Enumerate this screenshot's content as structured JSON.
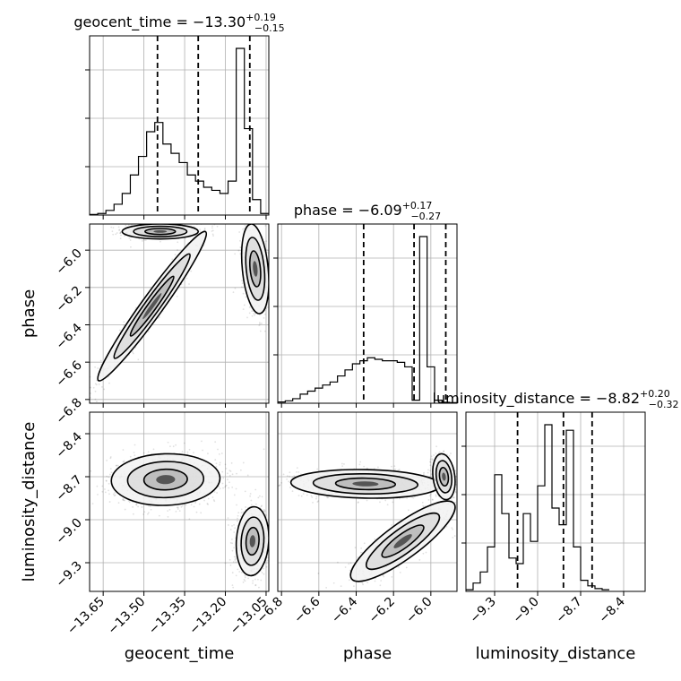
{
  "chart_data": {
    "type": "corner",
    "params": [
      "geocent_time",
      "phase",
      "luminosity_distance"
    ],
    "grid": true,
    "titles": [
      {
        "name": "geocent_time",
        "median": "−13.30",
        "plus": "+0.19",
        "minus": "−0.15"
      },
      {
        "name": "phase",
        "median": "−6.09",
        "plus": "+0.17",
        "minus": "−0.27"
      },
      {
        "name": "luminosity_distance",
        "median": "−8.82",
        "plus": "+0.20",
        "minus": "−0.32"
      }
    ],
    "axis_labels": {
      "x": [
        "geocent_time",
        "phase",
        "luminosity_distance"
      ],
      "y": [
        "phase",
        "luminosity_distance"
      ]
    },
    "ranges": [
      [
        -13.7,
        -13.04
      ],
      [
        -6.82,
        -5.86
      ],
      [
        -9.5,
        -8.25
      ]
    ],
    "ticks": {
      "geocent_time": {
        "values": [
          -13.65,
          -13.5,
          -13.35,
          -13.2,
          -13.05
        ],
        "labels": [
          "−13.65",
          "−13.50",
          "−13.35",
          "−13.20",
          "−13.05"
        ]
      },
      "phase": {
        "values": [
          -6.8,
          -6.6,
          -6.4,
          -6.2,
          -6.0
        ],
        "labels": [
          "−6.8",
          "−6.6",
          "−6.4",
          "−6.2",
          "−6.0"
        ]
      },
      "luminosity_distance": {
        "values": [
          -9.3,
          -9.0,
          -8.7,
          -8.4
        ],
        "labels": [
          "−9.3",
          "−9.0",
          "−8.7",
          "−8.4"
        ]
      }
    },
    "quantiles": [
      [
        -13.45,
        -13.3,
        -13.11
      ],
      [
        -6.36,
        -6.09,
        -5.92
      ],
      [
        -9.14,
        -8.82,
        -8.62
      ]
    ],
    "histograms": [
      {
        "edges_start": -13.7,
        "bin_width": 0.03,
        "counts": [
          0.2,
          0.5,
          1.5,
          3.5,
          7,
          13,
          19,
          27,
          30,
          23,
          20,
          17,
          13,
          11,
          9,
          8,
          7,
          11,
          54,
          28,
          5,
          0.5
        ]
      },
      {
        "edges_start": -6.82,
        "bin_width": 0.04,
        "counts": [
          0.4,
          0.8,
          1.5,
          3,
          4,
          5,
          6,
          7,
          9,
          11,
          13,
          14,
          15,
          14.5,
          14,
          14,
          13.5,
          12,
          1,
          55,
          12,
          1,
          0.3,
          0.2
        ]
      },
      {
        "edges_start": -9.5,
        "bin_width": 0.05,
        "counts": [
          0.3,
          1.5,
          3.5,
          8,
          21,
          14,
          6,
          5,
          14,
          9,
          19,
          30,
          15,
          12,
          29,
          8,
          2,
          1,
          0.5,
          0.3
        ]
      }
    ],
    "scatter_2d": [
      {
        "x": "geocent_time",
        "y": "phase",
        "modes": [
          {
            "cx": -13.44,
            "cy": -5.9,
            "sx": 0.07,
            "sy": 0.02,
            "rho": 0.0,
            "w": 0.33
          },
          {
            "cx": -13.47,
            "cy": -6.3,
            "sx": 0.1,
            "sy": 0.2,
            "rho": 0.97,
            "w": 0.35
          },
          {
            "cx": -13.09,
            "cy": -6.1,
            "sx": 0.025,
            "sy": 0.12,
            "rho": -0.3,
            "w": 0.3
          }
        ]
      },
      {
        "x": "geocent_time",
        "y": "luminosity_distance",
        "modes": [
          {
            "cx": -13.42,
            "cy": -8.72,
            "sx": 0.1,
            "sy": 0.09,
            "rho": 0.05,
            "w": 0.62
          },
          {
            "cx": -13.1,
            "cy": -9.15,
            "sx": 0.03,
            "sy": 0.12,
            "rho": 0.1,
            "w": 0.36
          }
        ]
      },
      {
        "x": "phase",
        "y": "luminosity_distance",
        "modes": [
          {
            "cx": -6.35,
            "cy": -8.75,
            "sx": 0.2,
            "sy": 0.05,
            "rho": -0.1,
            "w": 0.45
          },
          {
            "cx": -6.15,
            "cy": -9.15,
            "sx": 0.14,
            "sy": 0.14,
            "rho": 0.85,
            "w": 0.32
          },
          {
            "cx": -5.93,
            "cy": -8.7,
            "sx": 0.03,
            "sy": 0.08,
            "rho": -0.2,
            "w": 0.22
          }
        ]
      }
    ]
  }
}
